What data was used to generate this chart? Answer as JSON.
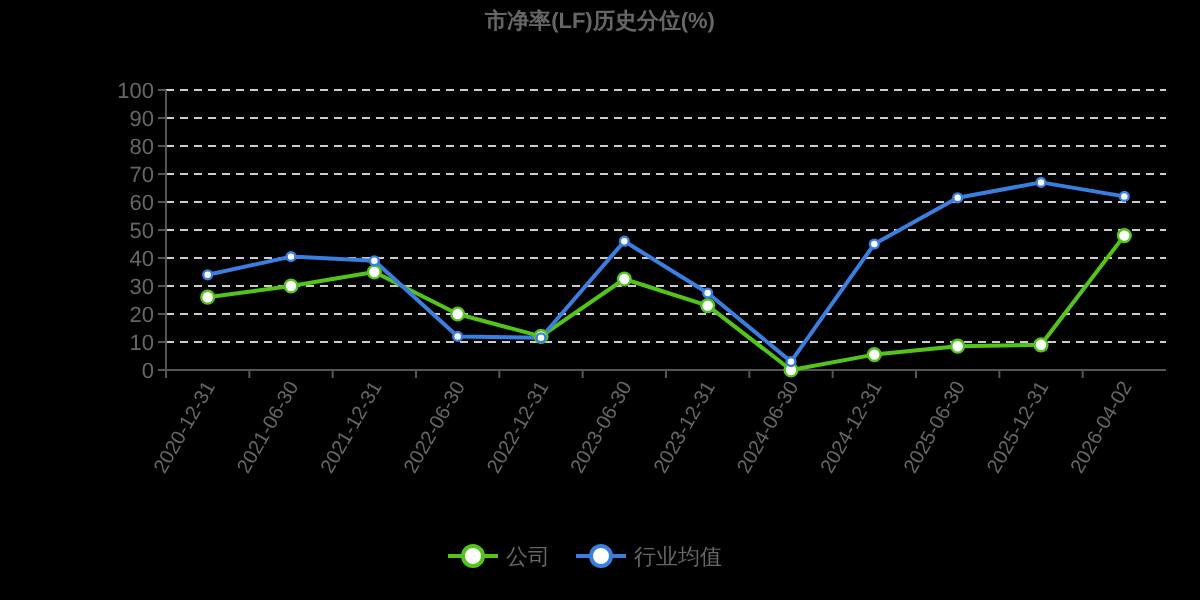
{
  "chart_data": {
    "type": "line",
    "title": "市净率(LF)历史分位(%)",
    "categories": [
      "2020-12-31",
      "2021-06-30",
      "2021-12-31",
      "2022-06-30",
      "2022-12-31",
      "2023-06-30",
      "2023-12-31",
      "2024-06-30",
      "2024-12-31",
      "2025-06-30",
      "2025-12-31",
      "2026-04-02"
    ],
    "series": [
      {
        "name": "公司",
        "color": "#52c41a",
        "values": [
          26,
          30,
          35,
          20,
          12,
          32.5,
          23,
          0,
          5.5,
          8.5,
          9,
          48
        ]
      },
      {
        "name": "行业均值",
        "color": "#3a7fe0",
        "values": [
          34,
          40.5,
          39,
          12,
          11.5,
          46,
          27.5,
          3,
          45,
          61.5,
          67,
          62
        ]
      }
    ],
    "ylim": [
      0,
      100
    ],
    "yticks": [
      0,
      10,
      20,
      30,
      40,
      50,
      60,
      70,
      80,
      90,
      100
    ],
    "grid": "y",
    "legend": "bottom",
    "marker": "circle"
  }
}
